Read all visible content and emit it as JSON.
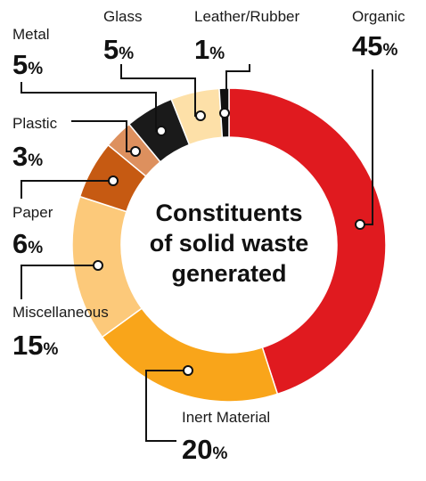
{
  "chart_data": {
    "type": "pie",
    "style": "donut",
    "title_lines": [
      "Constituents",
      "of solid waste",
      "generated"
    ],
    "unit_symbol": "%",
    "slices": [
      {
        "label": "Organic",
        "value": 45,
        "color": "#e01a1f"
      },
      {
        "label": "Inert Material",
        "value": 20,
        "color": "#f9a51a"
      },
      {
        "label": "Miscellaneous",
        "value": 15,
        "color": "#fcc97a"
      },
      {
        "label": "Paper",
        "value": 6,
        "color": "#c65a12"
      },
      {
        "label": "Plastic",
        "value": 3,
        "color": "#dd905e"
      },
      {
        "label": "Metal",
        "value": 5,
        "color": "#1a1a1a"
      },
      {
        "label": "Glass",
        "value": 5,
        "color": "#fde0a8"
      },
      {
        "label": "Leather/Rubber",
        "value": 1,
        "color": "#111111"
      }
    ]
  }
}
